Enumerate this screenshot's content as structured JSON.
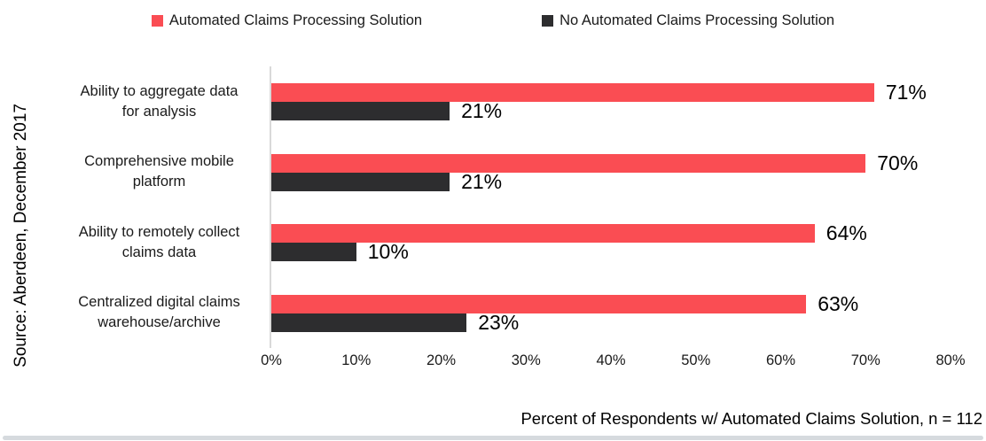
{
  "source_label": "Source: Aberdeen, December 2017",
  "colors": {
    "bar_automated": "#FA4D53",
    "bar_no_automated": "#2D2D2F",
    "axis_line": "#D9D9D9",
    "bottom_bar": "#D6DADE"
  },
  "legend": {
    "items": [
      {
        "label": "Automated Claims Processing Solution",
        "color": "#FA4D53"
      },
      {
        "label": "No Automated Claims Processing Solution",
        "color": "#2D2D2F"
      }
    ]
  },
  "chart_data": {
    "type": "bar",
    "orientation": "horizontal",
    "categories": [
      "Ability to aggregate data for analysis",
      "Comprehensive mobile platform",
      "Ability to remotely collect claims data",
      "Centralized digital claims warehouse/archive"
    ],
    "categories_wrapped": [
      [
        "Ability to aggregate data",
        "for analysis"
      ],
      [
        "Comprehensive mobile",
        "platform"
      ],
      [
        "Ability to remotely collect",
        "claims data"
      ],
      [
        "Centralized digital claims",
        "warehouse/archive"
      ]
    ],
    "series": [
      {
        "name": "Automated Claims Processing Solution",
        "color": "#FA4D53",
        "values": [
          71,
          70,
          64,
          63
        ]
      },
      {
        "name": "No Automated Claims Processing Solution",
        "color": "#2D2D2F",
        "values": [
          21,
          21,
          10,
          23
        ]
      }
    ],
    "data_label_suffix": "%",
    "x_ticks": [
      "0%",
      "10%",
      "20%",
      "30%",
      "40%",
      "50%",
      "60%",
      "70%",
      "80%"
    ],
    "xlim": [
      0,
      80
    ],
    "xlabel": "Percent of Respondents w/ Automated Claims Solution, n = 112",
    "grid": false,
    "legend_position": "top"
  }
}
